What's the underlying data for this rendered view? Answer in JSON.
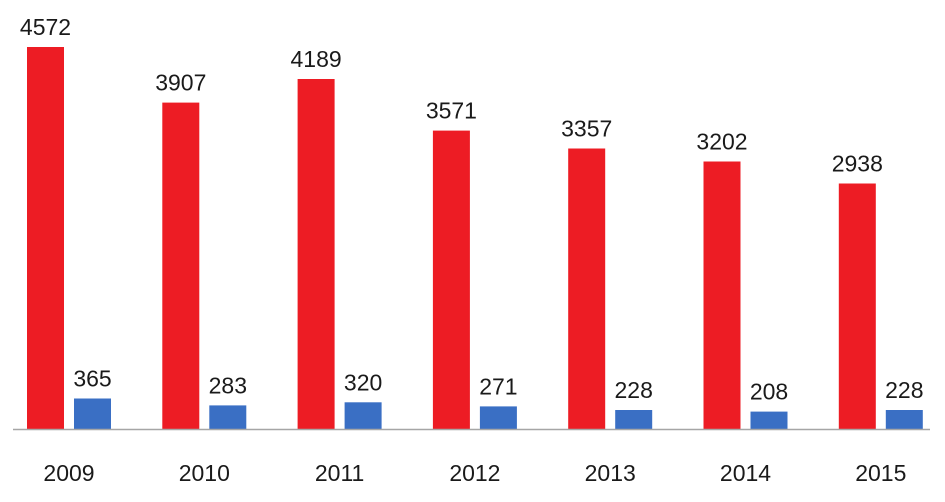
{
  "chart_data": {
    "type": "bar",
    "categories": [
      "2009",
      "2010",
      "2011",
      "2012",
      "2013",
      "2014",
      "2015"
    ],
    "series": [
      {
        "values": [
          4572,
          3907,
          4189,
          3571,
          3357,
          3202,
          2938
        ],
        "color": "#ed1c24"
      },
      {
        "values": [
          365,
          283,
          320,
          271,
          228,
          208,
          228
        ],
        "color": "#3a6fc4"
      }
    ],
    "data_labels": {
      "series_0": [
        "4572",
        "3907",
        "4189",
        "3571",
        "3357",
        "3202",
        "2938"
      ],
      "series_1": [
        "365",
        "283",
        "320",
        "271",
        "228",
        "208",
        "228"
      ]
    },
    "ylim": [
      0,
      4572
    ],
    "grid": false,
    "legend": "none",
    "axis_color": "#a6a6a6"
  }
}
